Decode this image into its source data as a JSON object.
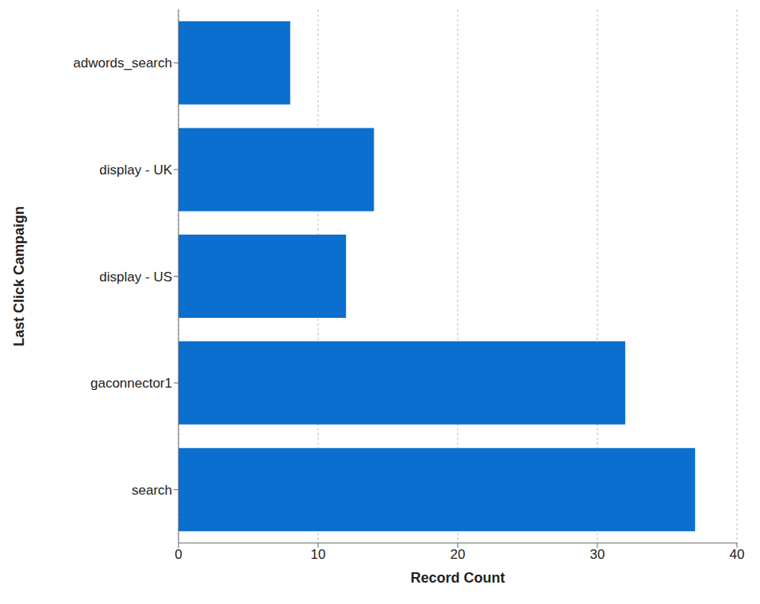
{
  "chart_data": {
    "type": "bar",
    "orientation": "horizontal",
    "categories": [
      "adwords_search",
      "display - UK",
      "display - US",
      "gaconnector1",
      "search"
    ],
    "values": [
      8,
      14,
      12,
      32,
      37
    ],
    "color": "#0b6fcf",
    "x_label": "Record Count",
    "y_label": "Last Click Campaign",
    "xlim": [
      0,
      40
    ],
    "xticks": [
      0,
      10,
      20,
      30,
      40
    ],
    "grid": true
  }
}
